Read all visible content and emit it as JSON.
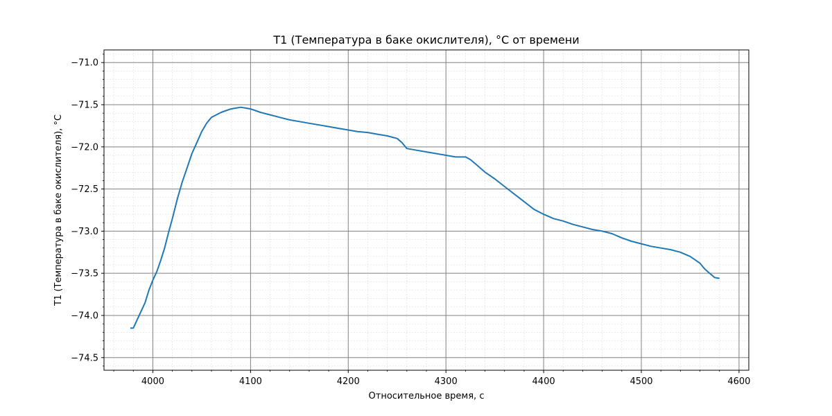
{
  "chart_data": {
    "type": "line",
    "title": "T1 (Температура в баке окислителя), °C от времени",
    "xlabel": "Относительное время, с",
    "ylabel": "T1 (Температура в баке окислителя), °C",
    "xlim": [
      3950,
      4610
    ],
    "ylim": [
      -74.65,
      -70.85
    ],
    "x_ticks": [
      4000,
      4100,
      4200,
      4300,
      4400,
      4500,
      4600
    ],
    "x_tick_labels": [
      "4000",
      "4100",
      "4200",
      "4300",
      "4400",
      "4500",
      "4600"
    ],
    "y_ticks": [
      -71.0,
      -71.5,
      -72.0,
      -72.5,
      -73.0,
      -73.5,
      -74.0,
      -74.5
    ],
    "y_tick_labels": [
      "−71.0",
      "−71.5",
      "−72.0",
      "−72.5",
      "−73.0",
      "−73.5",
      "−74.0",
      "−74.5"
    ],
    "grid": true,
    "minor_grid": true,
    "series": [
      {
        "color": "#1f77b4",
        "x": [
          3977,
          3980,
          3984,
          3988,
          3992,
          3996,
          4000,
          4004,
          4008,
          4012,
          4016,
          4020,
          4025,
          4030,
          4035,
          4040,
          4045,
          4050,
          4055,
          4060,
          4065,
          4070,
          4075,
          4080,
          4085,
          4090,
          4095,
          4100,
          4105,
          4110,
          4120,
          4130,
          4140,
          4150,
          4160,
          4170,
          4180,
          4190,
          4200,
          4210,
          4220,
          4230,
          4240,
          4250,
          4255,
          4260,
          4270,
          4280,
          4290,
          4300,
          4310,
          4320,
          4325,
          4330,
          4340,
          4350,
          4360,
          4370,
          4380,
          4390,
          4400,
          4410,
          4420,
          4430,
          4440,
          4450,
          4460,
          4470,
          4480,
          4490,
          4500,
          4510,
          4520,
          4530,
          4540,
          4550,
          4560,
          4565,
          4570,
          4575,
          4580
        ],
        "y": [
          -74.15,
          -74.15,
          -74.05,
          -73.95,
          -73.85,
          -73.7,
          -73.58,
          -73.48,
          -73.35,
          -73.2,
          -73.02,
          -72.85,
          -72.62,
          -72.42,
          -72.25,
          -72.08,
          -71.95,
          -71.82,
          -71.72,
          -71.65,
          -71.62,
          -71.59,
          -71.57,
          -71.55,
          -71.54,
          -71.53,
          -71.54,
          -71.55,
          -71.57,
          -71.59,
          -71.62,
          -71.65,
          -71.68,
          -71.7,
          -71.72,
          -71.74,
          -71.76,
          -71.78,
          -71.8,
          -71.82,
          -71.83,
          -71.85,
          -71.87,
          -71.9,
          -71.95,
          -72.02,
          -72.04,
          -72.06,
          -72.08,
          -72.1,
          -72.12,
          -72.12,
          -72.15,
          -72.2,
          -72.3,
          -72.38,
          -72.47,
          -72.56,
          -72.65,
          -72.74,
          -72.8,
          -72.85,
          -72.88,
          -72.92,
          -72.95,
          -72.98,
          -73.0,
          -73.03,
          -73.08,
          -73.12,
          -73.15,
          -73.18,
          -73.2,
          -73.22,
          -73.25,
          -73.3,
          -73.38,
          -73.45,
          -73.5,
          -73.55,
          -73.56
        ]
      }
    ]
  }
}
